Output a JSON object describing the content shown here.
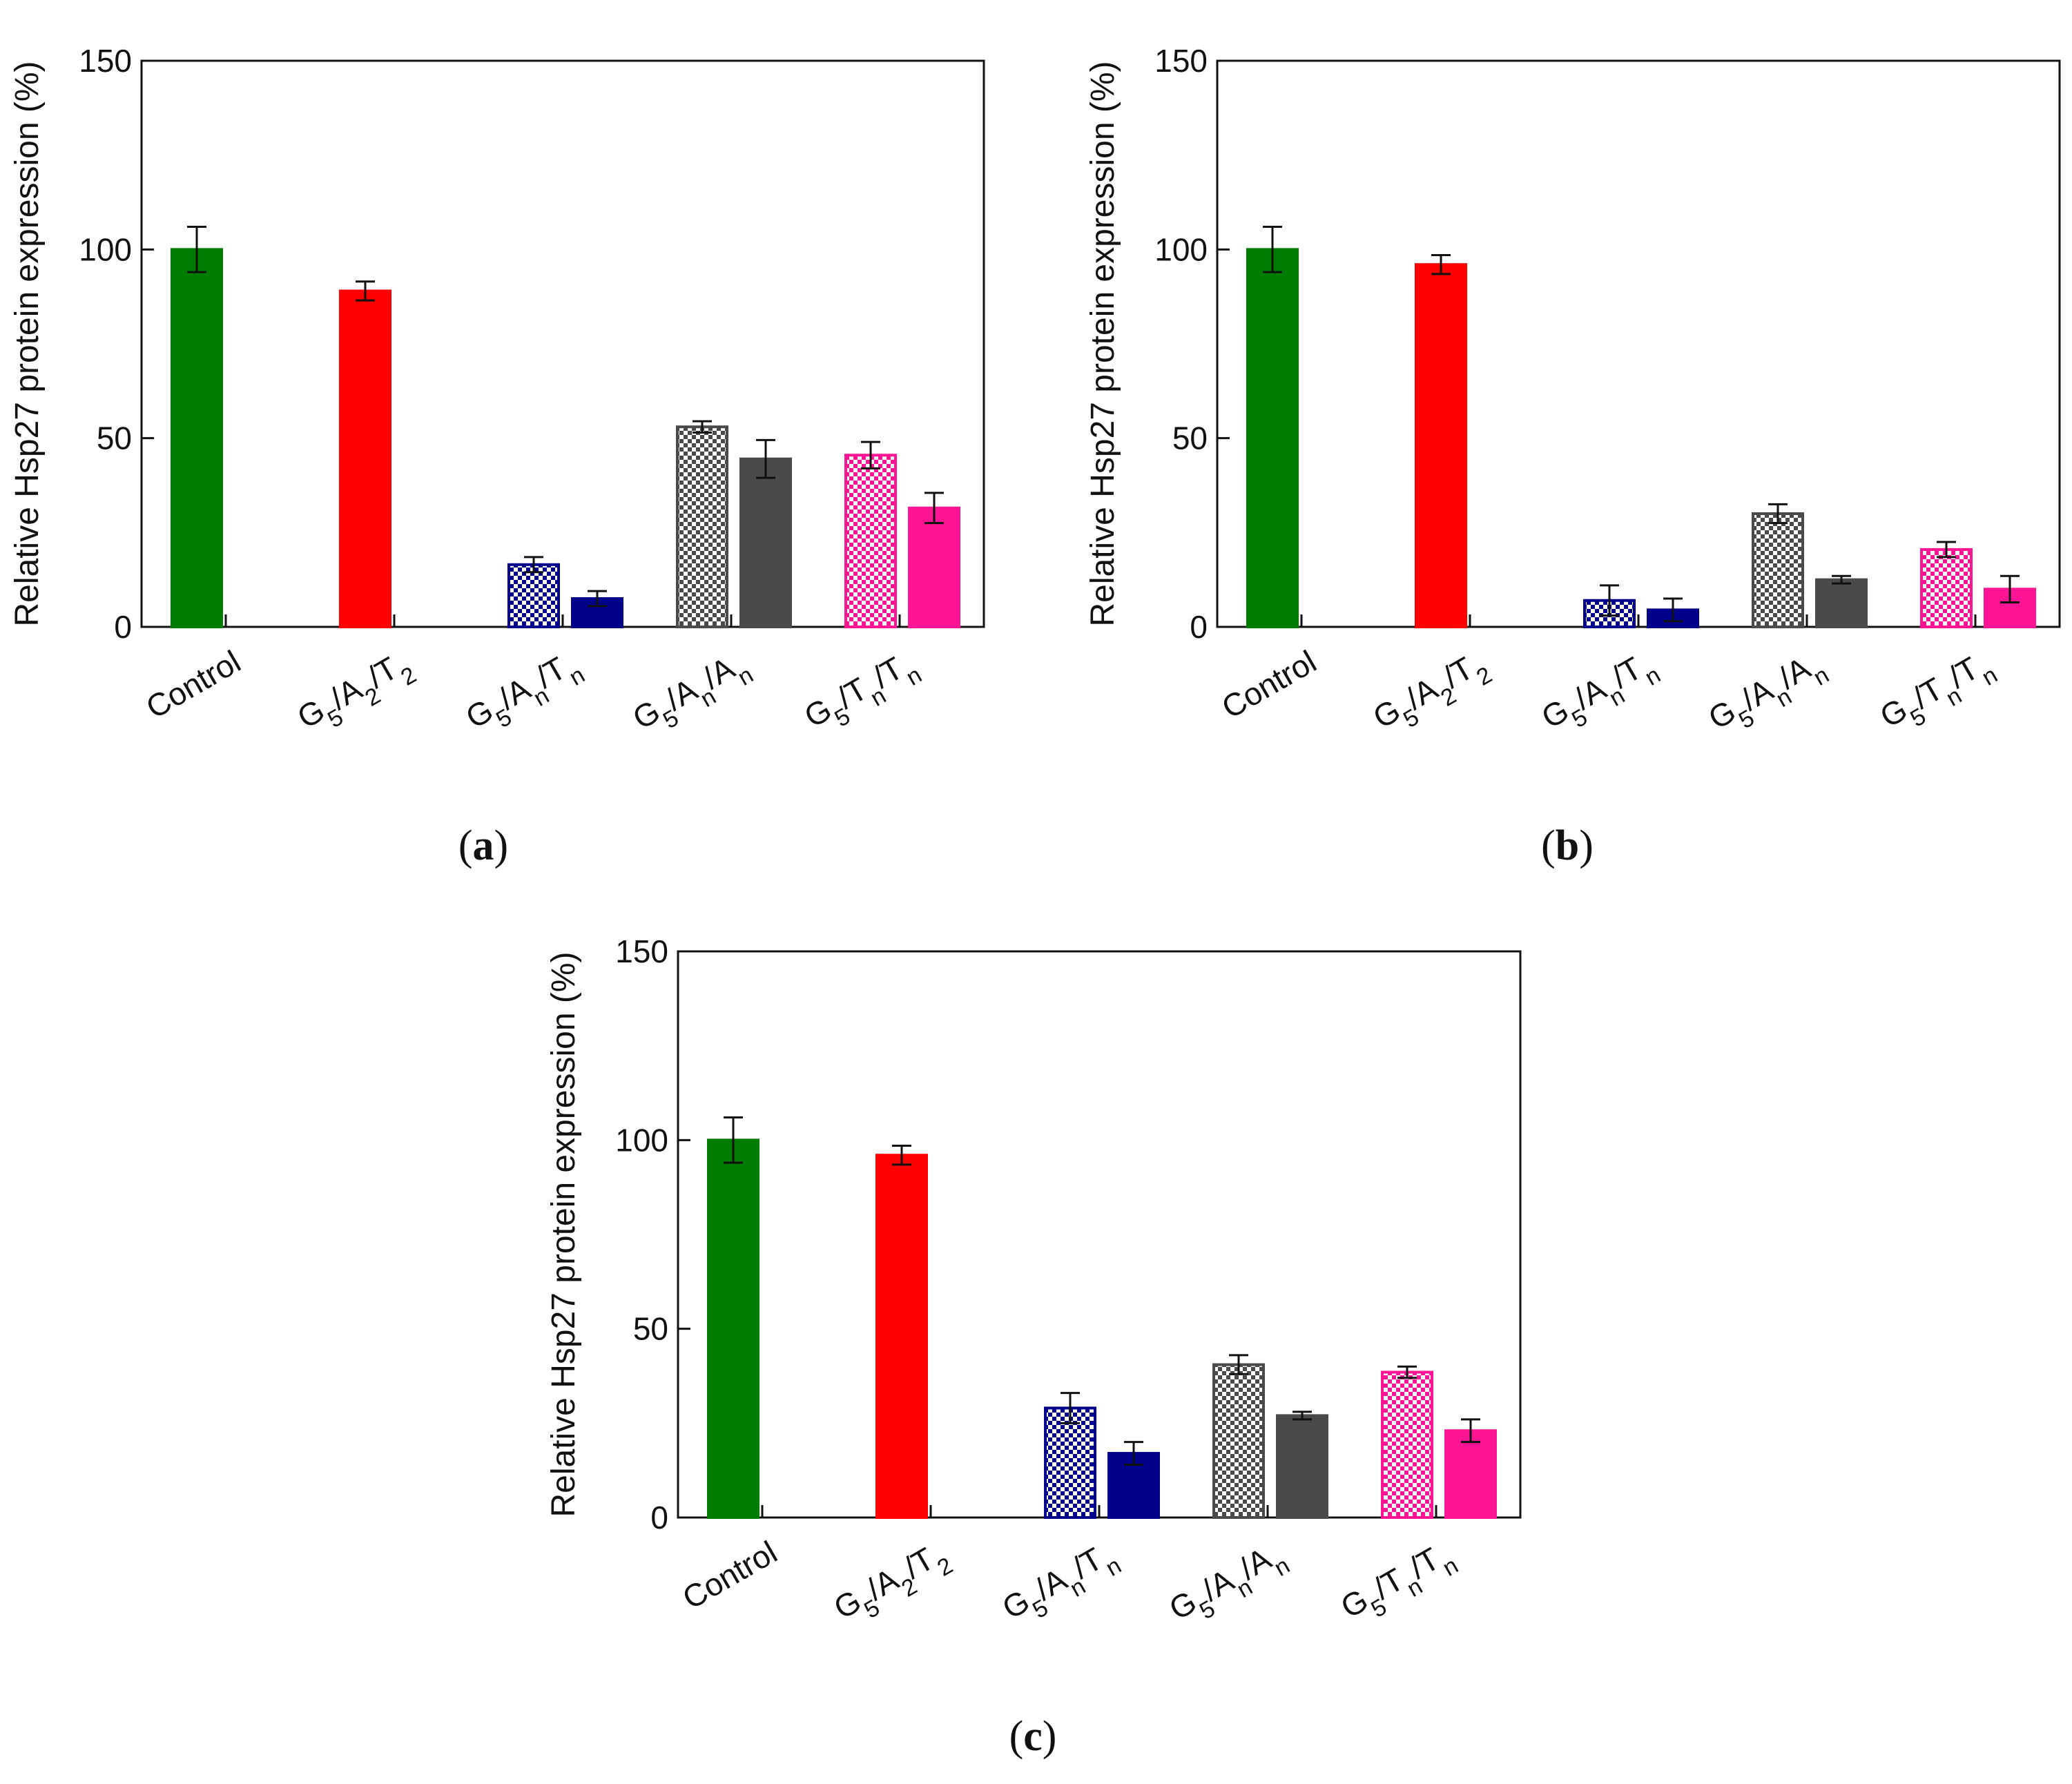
{
  "colors": {
    "control": "#007d00",
    "g5a2t2": "#ff0000",
    "g5antn": "#00008b",
    "g5anan": "#4a4a4a",
    "g5tntn": "#ff1493"
  },
  "chart_data": [
    {
      "panel_label": "a",
      "type": "bar",
      "ylabel": "Relative Hsp27 protein expression (%)",
      "ylim": [
        0,
        150
      ],
      "yticks": [
        0,
        50,
        100,
        150
      ],
      "categories": [
        {
          "base": "Control",
          "subs": []
        },
        {
          "base": "G5/A2/T2",
          "subs": [
            "5",
            "2",
            "2"
          ]
        },
        {
          "base": "G5/An/Tn",
          "subs": [
            "5",
            "n",
            "n"
          ]
        },
        {
          "base": "G5/An/An",
          "subs": [
            "5",
            "n",
            "n"
          ]
        },
        {
          "base": "G5/Tn/Tn",
          "subs": [
            "5",
            "n",
            "n"
          ]
        }
      ],
      "bars": [
        {
          "category": 0,
          "pattern": "solid",
          "color_key": "control",
          "value": 100,
          "error": 6
        },
        {
          "category": 1,
          "pattern": "solid",
          "color_key": "g5a2t2",
          "value": 89,
          "error": 2.5
        },
        {
          "category": 2,
          "pattern": "checker",
          "color_key": "g5antn",
          "value": 16.5,
          "error": 2
        },
        {
          "category": 2,
          "pattern": "solid",
          "color_key": "g5antn",
          "value": 7.5,
          "error": 2
        },
        {
          "category": 3,
          "pattern": "checker",
          "color_key": "g5anan",
          "value": 53,
          "error": 1.5
        },
        {
          "category": 3,
          "pattern": "solid",
          "color_key": "g5anan",
          "value": 44.5,
          "error": 5
        },
        {
          "category": 4,
          "pattern": "checker",
          "color_key": "g5tntn",
          "value": 45.5,
          "error": 3.5
        },
        {
          "category": 4,
          "pattern": "solid",
          "color_key": "g5tntn",
          "value": 31.5,
          "error": 4
        }
      ]
    },
    {
      "panel_label": "b",
      "type": "bar",
      "ylabel": "Relative Hsp27 protein expression (%)",
      "ylim": [
        0,
        150
      ],
      "yticks": [
        0,
        50,
        100,
        150
      ],
      "categories": [
        {
          "base": "Control",
          "subs": []
        },
        {
          "base": "G5/A2/T2",
          "subs": [
            "5",
            "2",
            "2"
          ]
        },
        {
          "base": "G5/An/Tn",
          "subs": [
            "5",
            "n",
            "n"
          ]
        },
        {
          "base": "G5/An/An",
          "subs": [
            "5",
            "n",
            "n"
          ]
        },
        {
          "base": "G5/Tn/Tn",
          "subs": [
            "5",
            "n",
            "n"
          ]
        }
      ],
      "bars": [
        {
          "category": 0,
          "pattern": "solid",
          "color_key": "control",
          "value": 100,
          "error": 6
        },
        {
          "category": 1,
          "pattern": "solid",
          "color_key": "g5a2t2",
          "value": 96,
          "error": 2.5
        },
        {
          "category": 2,
          "pattern": "checker",
          "color_key": "g5antn",
          "value": 7,
          "error": 4
        },
        {
          "category": 2,
          "pattern": "solid",
          "color_key": "g5antn",
          "value": 4.5,
          "error": 3
        },
        {
          "category": 3,
          "pattern": "checker",
          "color_key": "g5anan",
          "value": 30,
          "error": 2.5
        },
        {
          "category": 3,
          "pattern": "solid",
          "color_key": "g5anan",
          "value": 12.5,
          "error": 1
        },
        {
          "category": 4,
          "pattern": "checker",
          "color_key": "g5tntn",
          "value": 20.5,
          "error": 2
        },
        {
          "category": 4,
          "pattern": "solid",
          "color_key": "g5tntn",
          "value": 10,
          "error": 3.5
        }
      ]
    },
    {
      "panel_label": "c",
      "type": "bar",
      "ylabel": "Relative Hsp27 protein expression (%)",
      "ylim": [
        0,
        150
      ],
      "yticks": [
        0,
        50,
        100,
        150
      ],
      "categories": [
        {
          "base": "Control",
          "subs": []
        },
        {
          "base": "G5/A2/T2",
          "subs": [
            "5",
            "2",
            "2"
          ]
        },
        {
          "base": "G5/An/Tn",
          "subs": [
            "5",
            "n",
            "n"
          ]
        },
        {
          "base": "G5/An/An",
          "subs": [
            "5",
            "n",
            "n"
          ]
        },
        {
          "base": "G5/Tn/Tn",
          "subs": [
            "5",
            "n",
            "n"
          ]
        }
      ],
      "bars": [
        {
          "category": 0,
          "pattern": "solid",
          "color_key": "control",
          "value": 100,
          "error": 6
        },
        {
          "category": 1,
          "pattern": "solid",
          "color_key": "g5a2t2",
          "value": 96,
          "error": 2.5
        },
        {
          "category": 2,
          "pattern": "checker",
          "color_key": "g5antn",
          "value": 29,
          "error": 4
        },
        {
          "category": 2,
          "pattern": "solid",
          "color_key": "g5antn",
          "value": 17,
          "error": 3
        },
        {
          "category": 3,
          "pattern": "checker",
          "color_key": "g5anan",
          "value": 40.5,
          "error": 2.5
        },
        {
          "category": 3,
          "pattern": "solid",
          "color_key": "g5anan",
          "value": 27,
          "error": 1
        },
        {
          "category": 4,
          "pattern": "checker",
          "color_key": "g5tntn",
          "value": 38.5,
          "error": 1.5
        },
        {
          "category": 4,
          "pattern": "solid",
          "color_key": "g5tntn",
          "value": 23,
          "error": 3
        }
      ]
    }
  ]
}
